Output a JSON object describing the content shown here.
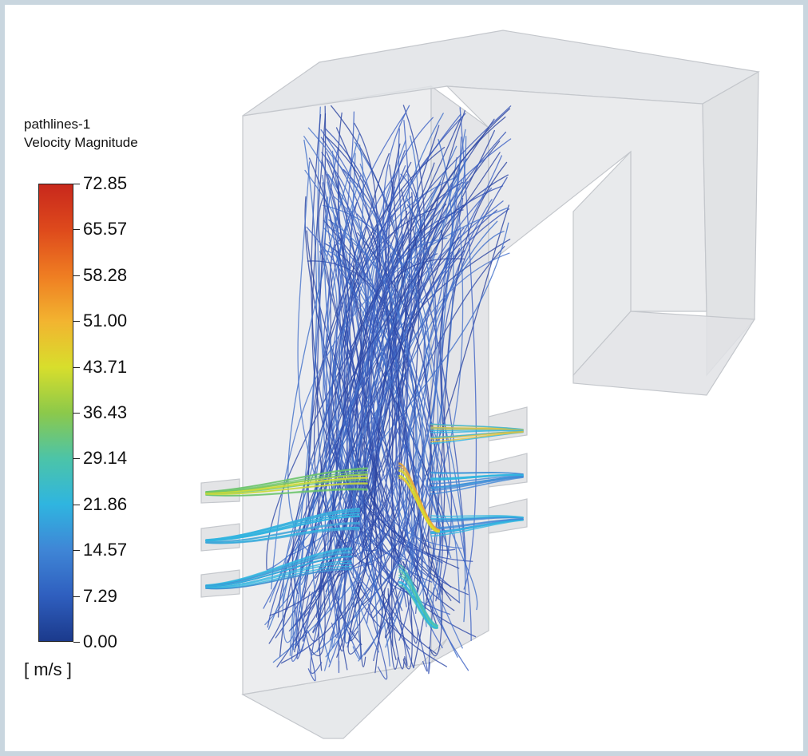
{
  "legend": {
    "title": "pathlines-1",
    "subtitle": "Velocity Magnitude",
    "unit": "[ m/s ]",
    "ticks": [
      "72.85",
      "65.57",
      "58.28",
      "51.00",
      "43.71",
      "36.43",
      "29.14",
      "21.86",
      "14.57",
      "7.29",
      "0.00"
    ],
    "range": [
      0.0,
      72.85
    ],
    "colormap": [
      "#1b3a8c",
      "#2f5fbf",
      "#3f86d6",
      "#2fb5e0",
      "#4cc4a8",
      "#8cc94a",
      "#d8de2c",
      "#f2b430",
      "#ef7d22",
      "#de4a1c",
      "#c8281c"
    ]
  },
  "colors": {
    "pathline_low": "#3555b8",
    "pathline_mid": "#2fb5e0",
    "pathline_high": "#e2d640",
    "geometry_fill": "#e9eaec",
    "geometry_edge": "#c4c7cc",
    "frame": "#c9d6df"
  }
}
